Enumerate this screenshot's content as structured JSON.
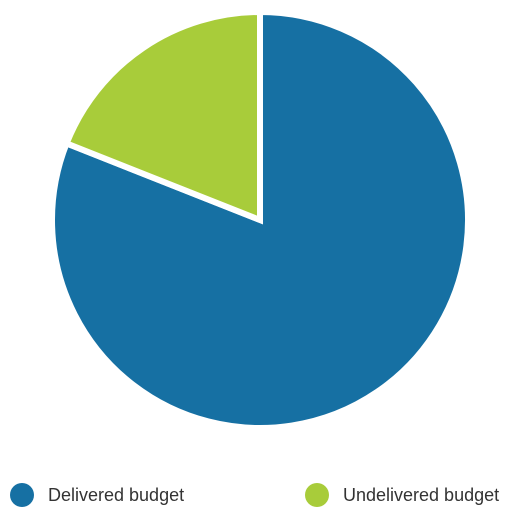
{
  "chart_data": {
    "type": "pie",
    "categories": [
      "Delivered budget",
      "Undelivered budget"
    ],
    "values": [
      81,
      19
    ],
    "colors": [
      "#1670a3",
      "#a8cc3a"
    ],
    "start_angle_deg": 0,
    "direction": "clockwise",
    "legend": {
      "placement": "bottom",
      "entries": [
        {
          "label": "Delivered budget",
          "color": "#1670a3"
        },
        {
          "label": "Undelivered budget",
          "color": "#a8cc3a"
        }
      ]
    }
  }
}
